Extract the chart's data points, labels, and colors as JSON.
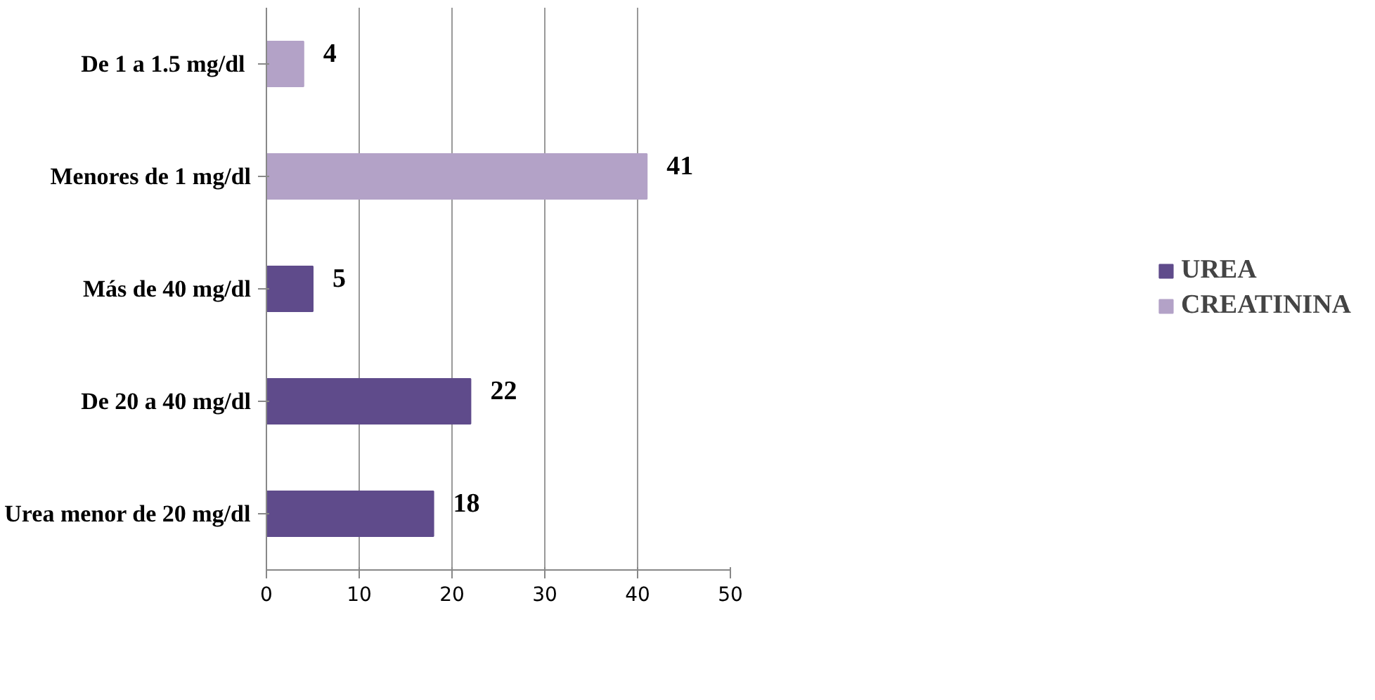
{
  "chart_data": {
    "type": "bar",
    "orientation": "horizontal",
    "categories": [
      "De  1 a 1.5 mg/dl",
      "Menores de 1 mg/dl",
      "Más de 40 mg/dl",
      "De 20 a 40 mg/dl",
      "Urea menor de 20 mg/dl"
    ],
    "series": [
      {
        "name": "UREA",
        "color": "#5f4b8b",
        "values": [
          null,
          null,
          5,
          22,
          18
        ]
      },
      {
        "name": "CREATININA",
        "color": "#b3a2c7",
        "values": [
          4,
          41,
          null,
          null,
          null
        ]
      }
    ],
    "xlim": [
      0,
      50
    ],
    "xticks": [
      0,
      10,
      20,
      30,
      40,
      50
    ],
    "grid": "x",
    "legend": "right",
    "data_labels": true
  }
}
